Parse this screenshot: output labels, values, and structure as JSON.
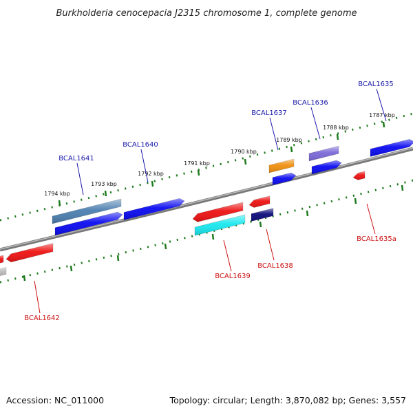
{
  "title": "Burkholderia cenocepacia J2315 chromosome 1, complete genome",
  "footer": {
    "accession": "Accession: NC_011000",
    "summary": "Topology: circular; Length: 3,870,082 bp; Genes: 3,557"
  },
  "colors": {
    "backbone": "#888888",
    "tick": "#1e7a1e",
    "forward_label": "#1a1aaa",
    "reverse_label": "#cc1111",
    "blue": "#0a0af0",
    "steelblue": "#4c7fb0",
    "orange": "#f09010",
    "purple": "#7b68d8",
    "navy": "#0a0a7a",
    "red": "#ee1111",
    "cyan": "#18e8ee",
    "grey": "#bbbbbb"
  },
  "scale": {
    "ticks": [
      {
        "label": "1794 kbp"
      },
      {
        "label": "1793 kbp"
      },
      {
        "label": "1792 kbp"
      },
      {
        "label": "1791 kbp"
      },
      {
        "label": "1790 kbp"
      },
      {
        "label": "1789 kbp"
      },
      {
        "label": "1788 kbp"
      },
      {
        "label": "1787 kbp"
      }
    ]
  },
  "genes": [
    {
      "label": "BCAL1641",
      "strand": "forward"
    },
    {
      "label": "BCAL1640",
      "strand": "forward"
    },
    {
      "label": "BCAL1637",
      "strand": "forward"
    },
    {
      "label": "BCAL1636",
      "strand": "forward"
    },
    {
      "label": "BCAL1635",
      "strand": "forward"
    },
    {
      "label": "BCAL1642",
      "strand": "reverse"
    },
    {
      "label": "BCAL1639",
      "strand": "reverse"
    },
    {
      "label": "BCAL1638",
      "strand": "reverse"
    },
    {
      "label": "BCAL1635a",
      "strand": "reverse"
    }
  ]
}
